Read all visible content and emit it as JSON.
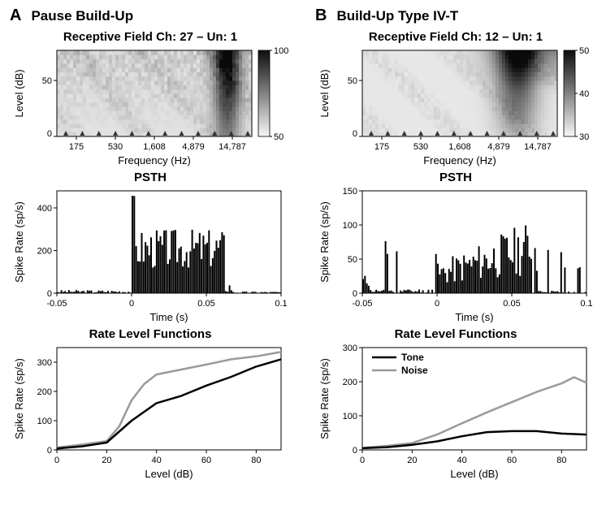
{
  "panelA": {
    "letter": "A",
    "type_label": "Pause Build-Up",
    "rf_title": "Receptive Field Ch: 27 – Un: 1",
    "psth_title": "PSTH",
    "rlf_title": "Rate Level Functions",
    "rf": {
      "xlabel": "Frequency (Hz)",
      "ylabel": "Level (dB)",
      "xticks": [
        "175",
        "530",
        "1,608",
        "4,879",
        "14,787"
      ],
      "yticks": [
        "0",
        "50"
      ],
      "cticks": [
        "50",
        "100"
      ],
      "bg": "#ffffff",
      "colormap_dark": "#0d0d0d",
      "colormap_light": "#f7f7f7"
    },
    "psth": {
      "xlabel": "Time (s)",
      "ylabel": "Spike Rate (sp/s)",
      "xticks": [
        "-0.05",
        "0",
        "0.05",
        "0.1"
      ],
      "yticks": [
        "0",
        "200",
        "400"
      ],
      "ylim": [
        0,
        480
      ],
      "xlim": [
        -0.05,
        0.1
      ],
      "bar_color": "#000000",
      "onset_peak": 460,
      "sustained_mean": 210,
      "stim_on": 0.0,
      "stim_off": 0.062,
      "n_bins": 120
    },
    "rlf": {
      "xlabel": "Level (dB)",
      "ylabel": "Spike Rate (sp/s)",
      "xticks": [
        "0",
        "20",
        "40",
        "60",
        "80"
      ],
      "yticks": [
        "0",
        "100",
        "200",
        "300"
      ],
      "ylim": [
        0,
        350
      ],
      "xlim": [
        0,
        90
      ],
      "tone_color": "#000000",
      "noise_color": "#9a9a9a",
      "tone": [
        [
          0,
          5
        ],
        [
          10,
          12
        ],
        [
          20,
          25
        ],
        [
          30,
          100
        ],
        [
          40,
          160
        ],
        [
          50,
          185
        ],
        [
          60,
          220
        ],
        [
          70,
          250
        ],
        [
          80,
          285
        ],
        [
          90,
          310
        ]
      ],
      "noise": [
        [
          0,
          8
        ],
        [
          10,
          18
        ],
        [
          20,
          30
        ],
        [
          25,
          80
        ],
        [
          30,
          170
        ],
        [
          35,
          225
        ],
        [
          40,
          258
        ],
        [
          50,
          275
        ],
        [
          60,
          292
        ],
        [
          70,
          310
        ],
        [
          80,
          320
        ],
        [
          90,
          335
        ]
      ]
    }
  },
  "panelB": {
    "letter": "B",
    "type_label": "Build-Up Type IV-T",
    "rf_title": "Receptive Field  Ch: 12 – Un: 1",
    "psth_title": "PSTH",
    "rlf_title": "Rate Level Functions",
    "rf": {
      "xlabel": "Frequency (Hz)",
      "ylabel": "Level (dB)",
      "xticks": [
        "175",
        "530",
        "1,608",
        "4,879",
        "14,787"
      ],
      "yticks": [
        "0",
        "50"
      ],
      "cticks": [
        "30",
        "40",
        "50"
      ]
    },
    "psth": {
      "xlabel": "Time (s)",
      "ylabel": "Spike Rate (sp/s)",
      "xticks": [
        "-0.05",
        "0",
        "0.05",
        "0.1"
      ],
      "yticks": [
        "0",
        "50",
        "100",
        "150"
      ],
      "ylim": [
        0,
        150
      ],
      "xlim": [
        -0.05,
        0.1
      ],
      "bar_color": "#000000",
      "stim_on": 0.0,
      "stim_off": 0.063,
      "buildup_start": 30,
      "buildup_end": 75,
      "n_bins": 120
    },
    "rlf": {
      "xlabel": "Level (dB)",
      "ylabel": "Spike Rate (sp/s)",
      "xticks": [
        "0",
        "20",
        "40",
        "60",
        "80"
      ],
      "yticks": [
        "0",
        "100",
        "200",
        "300"
      ],
      "ylim": [
        0,
        300
      ],
      "xlim": [
        0,
        90
      ],
      "tone_color": "#000000",
      "noise_color": "#9a9a9a",
      "legend": {
        "tone": "Tone",
        "noise": "Noise"
      },
      "tone": [
        [
          0,
          5
        ],
        [
          10,
          8
        ],
        [
          20,
          15
        ],
        [
          30,
          25
        ],
        [
          40,
          40
        ],
        [
          50,
          52
        ],
        [
          60,
          55
        ],
        [
          70,
          55
        ],
        [
          80,
          48
        ],
        [
          90,
          45
        ]
      ],
      "noise": [
        [
          0,
          6
        ],
        [
          10,
          12
        ],
        [
          20,
          20
        ],
        [
          30,
          45
        ],
        [
          40,
          78
        ],
        [
          50,
          110
        ],
        [
          60,
          140
        ],
        [
          70,
          170
        ],
        [
          80,
          195
        ],
        [
          85,
          213
        ],
        [
          90,
          197
        ]
      ]
    }
  },
  "style": {
    "axis_color": "#000000",
    "tick_fontsize": 11,
    "label_fontsize": 13,
    "line_width": 2.5
  }
}
